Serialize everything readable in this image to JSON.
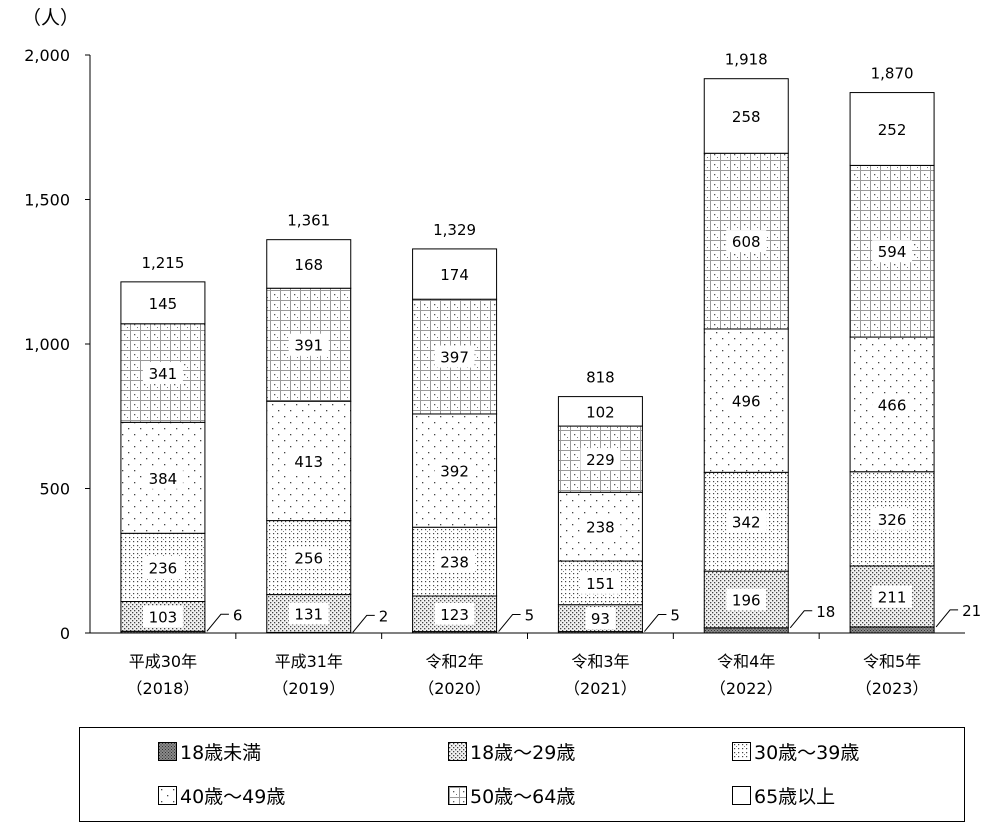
{
  "chart_data": {
    "type": "bar",
    "stacked": true,
    "unit_label": "（人）",
    "ylim": [
      0,
      2000
    ],
    "yticks": [
      0,
      500,
      1000,
      1500,
      2000
    ],
    "ytick_labels": [
      "0",
      "500",
      "1,000",
      "1,500",
      "2,000"
    ],
    "categories": [
      [
        "平成30年",
        "（2018）"
      ],
      [
        "平成31年",
        "（2019）"
      ],
      [
        "令和2年",
        "（2020）"
      ],
      [
        "令和3年",
        "（2021）"
      ],
      [
        "令和4年",
        "（2022）"
      ],
      [
        "令和5年",
        "（2023）"
      ]
    ],
    "series": [
      {
        "name": "18歳未満",
        "pattern": "dense-dark",
        "values": [
          6,
          2,
          5,
          5,
          18,
          21
        ]
      },
      {
        "name": "18歳～29歳",
        "pattern": "dense-dots",
        "values": [
          103,
          131,
          123,
          93,
          196,
          211
        ]
      },
      {
        "name": "30歳～39歳",
        "pattern": "dotted-grid",
        "values": [
          236,
          256,
          238,
          151,
          342,
          326
        ]
      },
      {
        "name": "40歳～49歳",
        "pattern": "sparse-dots",
        "values": [
          384,
          413,
          392,
          238,
          496,
          466
        ]
      },
      {
        "name": "50歳～64歳",
        "pattern": "dotted-squares",
        "values": [
          341,
          391,
          397,
          229,
          608,
          594
        ]
      },
      {
        "name": "65歳以上",
        "pattern": "white",
        "values": [
          145,
          168,
          174,
          102,
          258,
          252
        ]
      }
    ],
    "totals": [
      "1,215",
      "1,361",
      "1,329",
      "818",
      "1,918",
      "1,870"
    ],
    "legend_position": "bottom",
    "grid": false
  }
}
